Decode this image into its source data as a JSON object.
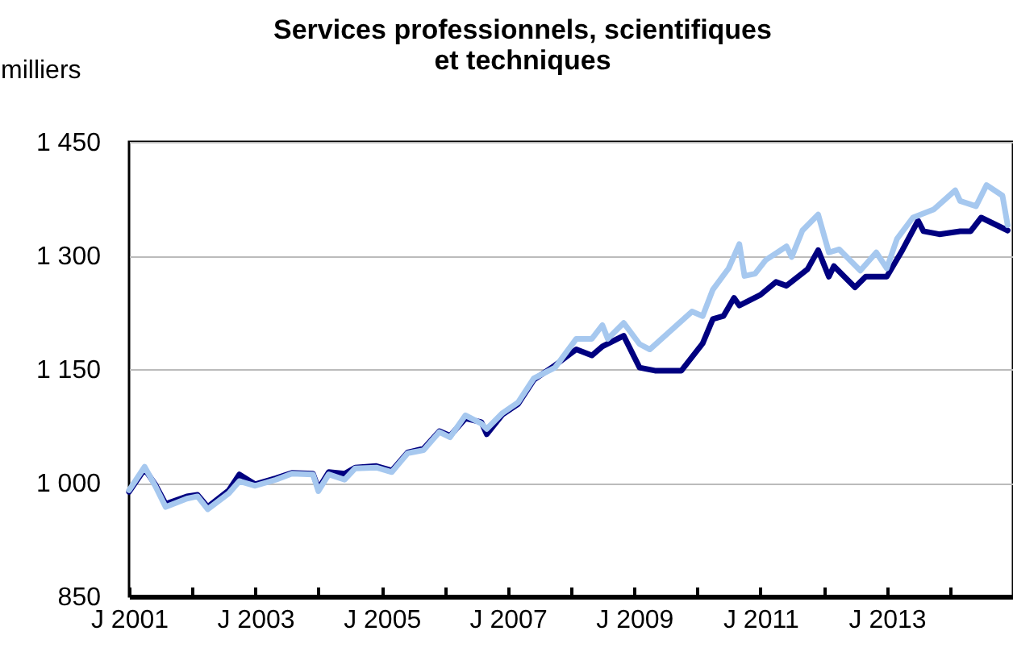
{
  "chart_data": {
    "type": "line",
    "title": "Services professionnels, scientifiques\net techniques",
    "ylabel": "milliers",
    "xlim": [
      "2001-01",
      "2015-01"
    ],
    "xticks": [
      {
        "value": "2001-01",
        "label": "J 2001"
      },
      {
        "value": "2002-01",
        "label": null
      },
      {
        "value": "2003-01",
        "label": "J 2003"
      },
      {
        "value": "2004-01",
        "label": null
      },
      {
        "value": "2005-01",
        "label": "J 2005"
      },
      {
        "value": "2006-01",
        "label": null
      },
      {
        "value": "2007-01",
        "label": "J 2007"
      },
      {
        "value": "2008-01",
        "label": null
      },
      {
        "value": "2009-01",
        "label": "J 2009"
      },
      {
        "value": "2010-01",
        "label": null
      },
      {
        "value": "2011-01",
        "label": "J 2011"
      },
      {
        "value": "2012-01",
        "label": null
      },
      {
        "value": "2013-01",
        "label": "J 2013"
      },
      {
        "value": "2014-01",
        "label": null
      }
    ],
    "ylim": [
      850,
      1450
    ],
    "yticks": [
      850,
      {
        "value": 1000,
        "label": "1 000"
      },
      {
        "value": 1150,
        "label": "1 150"
      },
      {
        "value": 1300,
        "label": "1 300"
      },
      {
        "value": 1450,
        "label": "1 450"
      }
    ],
    "grid": "y",
    "series": [
      {
        "color": "#000080",
        "x": [
          "2001-01",
          "2001-04",
          "2001-06",
          "2001-08",
          "2001-12",
          "2002-02",
          "2002-04",
          "2002-08",
          "2002-10",
          "2003-01",
          "2003-05",
          "2003-08",
          "2003-12",
          "2004-01",
          "2004-03",
          "2004-06",
          "2004-08",
          "2004-12",
          "2005-03",
          "2005-06",
          "2005-09",
          "2005-12",
          "2006-02",
          "2006-05",
          "2006-08",
          "2006-09",
          "2006-12",
          "2007-03",
          "2007-06",
          "2007-10",
          "2008-02",
          "2008-05",
          "2008-07",
          "2008-11",
          "2009-02",
          "2009-05",
          "2009-10",
          "2010-02",
          "2010-04",
          "2010-06",
          "2010-08",
          "2010-09",
          "2011-01",
          "2011-04",
          "2011-06",
          "2011-10",
          "2011-12",
          "2012-02",
          "2012-03",
          "2012-07",
          "2012-09",
          "2013-01",
          "2013-04",
          "2013-07",
          "2013-08",
          "2013-11",
          "2014-03",
          "2014-05",
          "2014-07",
          "2014-12"
        ],
        "values": [
          988,
          1018,
          998,
          972,
          982,
          984,
          968,
          990,
          1011,
          998,
          1006,
          1013,
          1012,
          992,
          1014,
          1012,
          1020,
          1022,
          1016,
          1040,
          1045,
          1068,
          1062,
          1085,
          1080,
          1064,
          1090,
          1104,
          1136,
          1155,
          1176,
          1168,
          1180,
          1194,
          1152,
          1148,
          1148,
          1184,
          1216,
          1220,
          1244,
          1234,
          1248,
          1265,
          1260,
          1282,
          1307,
          1272,
          1286,
          1258,
          1272,
          1272,
          1307,
          1346,
          1332,
          1328,
          1332,
          1332,
          1350,
          1333
        ]
      },
      {
        "color": "#a6c8ef",
        "x": [
          "2001-01",
          "2001-04",
          "2001-06",
          "2001-08",
          "2001-12",
          "2002-02",
          "2002-04",
          "2002-08",
          "2002-10",
          "2003-01",
          "2003-05",
          "2003-08",
          "2003-12",
          "2004-01",
          "2004-03",
          "2004-06",
          "2004-08",
          "2004-12",
          "2005-03",
          "2005-06",
          "2005-09",
          "2005-12",
          "2006-02",
          "2006-05",
          "2006-08",
          "2006-09",
          "2006-12",
          "2007-03",
          "2007-06",
          "2007-10",
          "2008-02",
          "2008-05",
          "2008-07",
          "2008-08",
          "2008-11",
          "2009-02",
          "2009-04",
          "2009-08",
          "2009-12",
          "2010-02",
          "2010-04",
          "2010-07",
          "2010-09",
          "2010-10",
          "2010-12",
          "2011-02",
          "2011-06",
          "2011-07",
          "2011-09",
          "2011-12",
          "2012-02",
          "2012-04",
          "2012-08",
          "2012-11",
          "2013-01",
          "2013-03",
          "2013-06",
          "2013-10",
          "2014-02",
          "2014-03",
          "2014-06",
          "2014-08",
          "2014-11",
          "2014-12"
        ],
        "values": [
          990,
          1021,
          996,
          968,
          979,
          982,
          965,
          986,
          1002,
          996,
          1004,
          1012,
          1011,
          989,
          1011,
          1004,
          1019,
          1020,
          1014,
          1039,
          1043,
          1067,
          1060,
          1089,
          1078,
          1071,
          1092,
          1106,
          1138,
          1152,
          1190,
          1190,
          1208,
          1190,
          1211,
          1183,
          1176,
          1201,
          1226,
          1220,
          1255,
          1283,
          1315,
          1273,
          1276,
          1294,
          1312,
          1298,
          1333,
          1354,
          1304,
          1308,
          1280,
          1304,
          1283,
          1322,
          1350,
          1361,
          1386,
          1372,
          1365,
          1393,
          1379,
          1340
        ]
      }
    ]
  }
}
